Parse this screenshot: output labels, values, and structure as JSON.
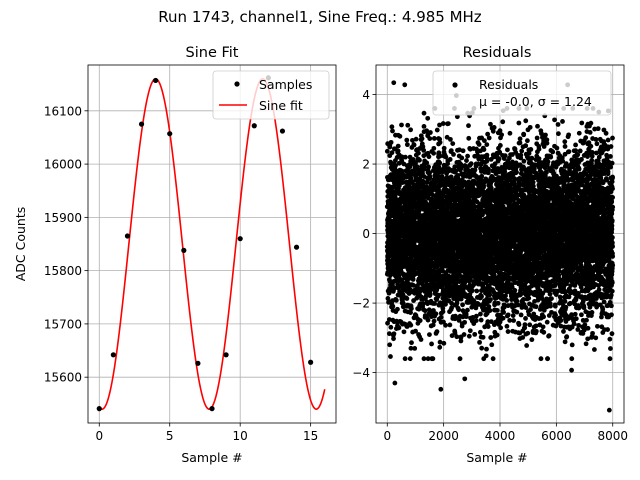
{
  "figure": {
    "suptitle": "Run 1743, channel1, Sine Freq.: 4.985 MHz"
  },
  "chart_data": [
    {
      "type": "line",
      "title": "Sine Fit",
      "xlabel": "Sample #",
      "ylabel": "ADC Counts",
      "xlim": [
        -0.8,
        16.8
      ],
      "ylim": [
        15514,
        16186
      ],
      "xticks": [
        0,
        5,
        10,
        15
      ],
      "yticks": [
        15600,
        15700,
        15800,
        15900,
        16000,
        16100
      ],
      "grid": true,
      "legend": {
        "placement": "top-right",
        "entries": [
          "Samples",
          "Sine fit"
        ]
      },
      "series": [
        {
          "name": "Samples",
          "kind": "scatter",
          "color": "#000000",
          "x": [
            0,
            1,
            2,
            3,
            4,
            5,
            6,
            7,
            8,
            9,
            10,
            11,
            12,
            13,
            14,
            15
          ],
          "y": [
            15541,
            15642,
            15865,
            16075,
            16157,
            16057,
            15838,
            15626,
            15541,
            15642,
            15860,
            16072,
            16162,
            16062,
            15844,
            15628
          ]
        },
        {
          "name": "Sine fit",
          "kind": "line",
          "color": "#ff0000",
          "model": {
            "offset": 15850,
            "amplitude": 310,
            "period": 7.6,
            "phase_x": 4.0,
            "x_range": [
              0,
              16
            ]
          }
        }
      ]
    },
    {
      "type": "scatter",
      "title": "Residuals",
      "xlabel": "Sample #",
      "ylabel": "",
      "xlim": [
        -400,
        8400
      ],
      "ylim": [
        -5.45,
        4.85
      ],
      "xticks": [
        0,
        2000,
        4000,
        6000,
        8000
      ],
      "yticks": [
        -4,
        -2,
        0,
        2,
        4
      ],
      "grid": true,
      "legend": {
        "placement": "top-right",
        "entries": [
          "Residuals",
          "μ = -0.0, σ = 1.24"
        ]
      },
      "series": [
        {
          "name": "Residuals",
          "color": "#000000",
          "summary": {
            "count": 8000,
            "x_range": [
              0,
              7999
            ],
            "mean": -0.0,
            "std": 1.24
          },
          "outliers": [
            {
              "x": 230,
              "y": 4.34
            },
            {
              "x": 620,
              "y": 4.28
            },
            {
              "x": 2450,
              "y": 3.97
            },
            {
              "x": 6400,
              "y": 4.28
            },
            {
              "x": 270,
              "y": -4.3
            },
            {
              "x": 1900,
              "y": -4.48
            },
            {
              "x": 2750,
              "y": -4.18
            },
            {
              "x": 6540,
              "y": -3.93
            },
            {
              "x": 7880,
              "y": -5.08
            }
          ]
        }
      ]
    }
  ]
}
